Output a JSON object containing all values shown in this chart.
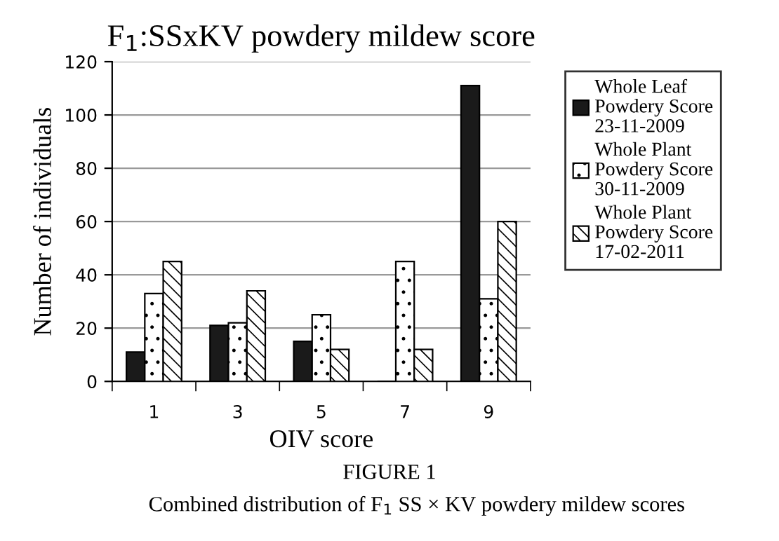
{
  "chart_data": {
    "type": "bar",
    "title": "F$_{1}$:SSxKV powdery mildew score",
    "xlabel": "OIV score",
    "ylabel": "Number of individuals",
    "categories": [
      "1",
      "3",
      "5",
      "7",
      "9"
    ],
    "series": [
      {
        "name": "Whole Leaf Powdery Score 23-11-2009",
        "color": "#1a1a1a",
        "values": [
          11,
          21,
          15,
          0,
          111
        ]
      },
      {
        "name": "Whole Plant Powdery Score 30-11-2009",
        "color": "#ffffff",
        "values": [
          33,
          22,
          25,
          45,
          31
        ]
      },
      {
        "name": "Whole Plant Powdery Score 17-02-2011",
        "color": "#ffffff",
        "values": [
          45,
          34,
          12,
          12,
          60
        ]
      }
    ],
    "ylim": [
      0,
      120
    ],
    "yticks": [
      0,
      20,
      40,
      60,
      80,
      100,
      120
    ],
    "grid": "y",
    "legend": "right",
    "annotations": [
      "FIGURE 1",
      "Combined distribution of F$_{1}$ SS × KV powdery mildew scores"
    ]
  }
}
